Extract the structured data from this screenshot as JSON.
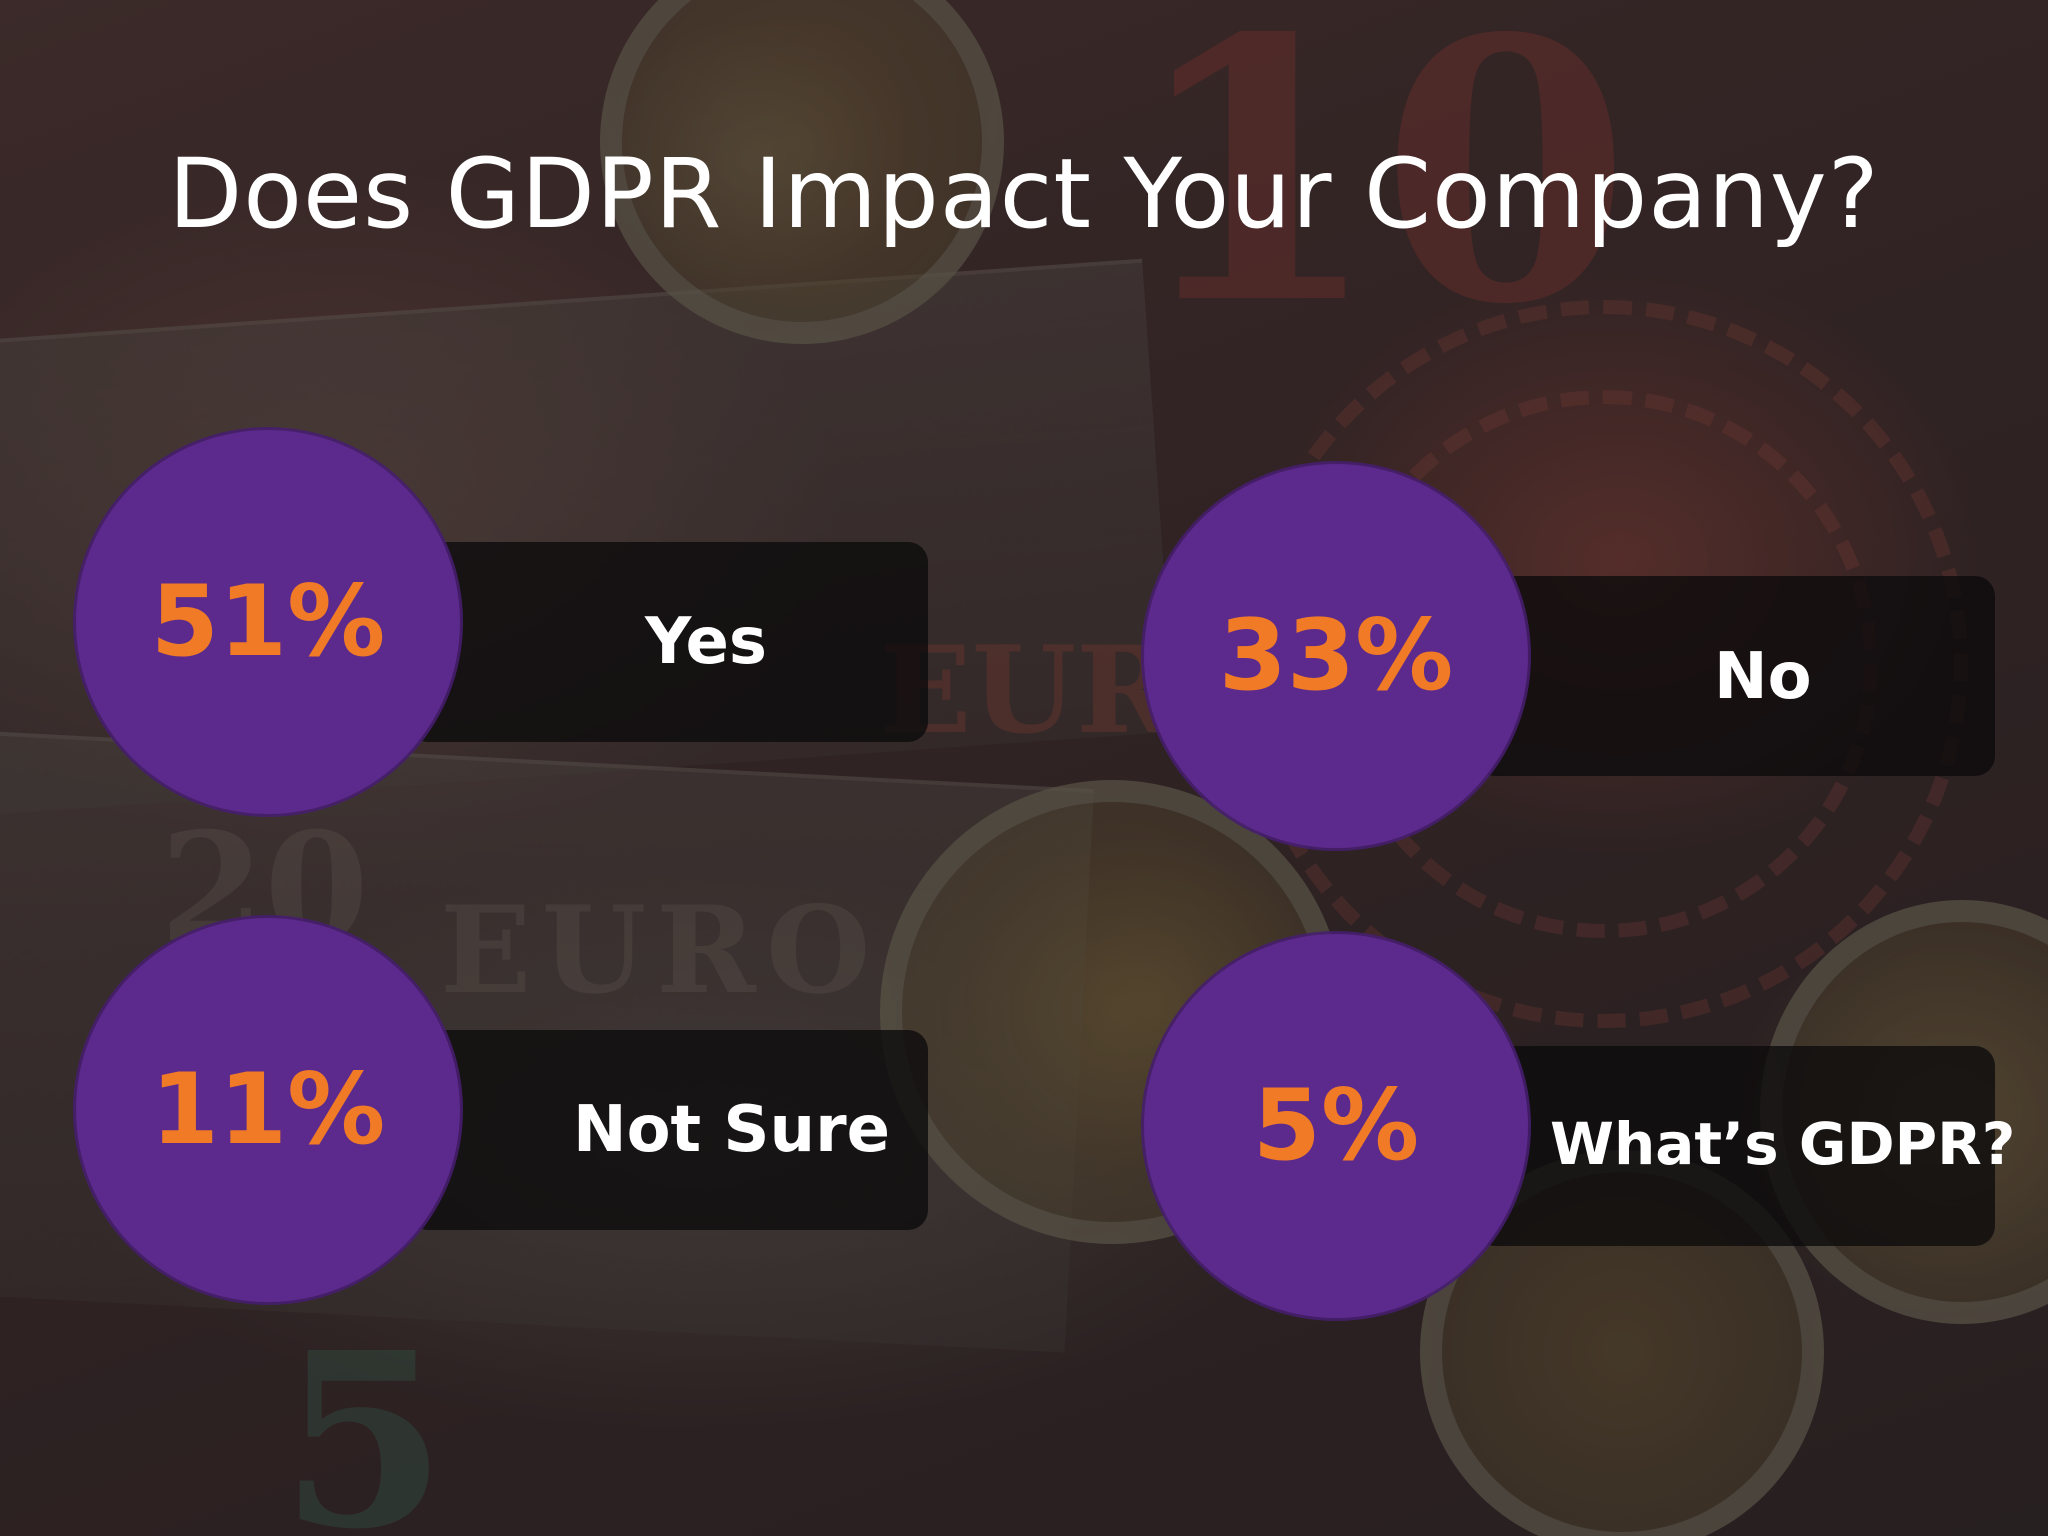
{
  "slide": {
    "title": "Does GDPR Impact Your Company?",
    "colors": {
      "circle": "#5b2a8c",
      "percent": "#f07a25",
      "label": "#ffffff",
      "bar": "#0c0a0c"
    },
    "results": [
      {
        "percent": "51%",
        "label": "Yes",
        "value": 51
      },
      {
        "percent": "33%",
        "label": "No",
        "value": 33
      },
      {
        "percent": "11%",
        "label": "Not Sure",
        "value": 11
      },
      {
        "percent": "5%",
        "label": "What’s GDPR?",
        "value": 5
      }
    ]
  }
}
